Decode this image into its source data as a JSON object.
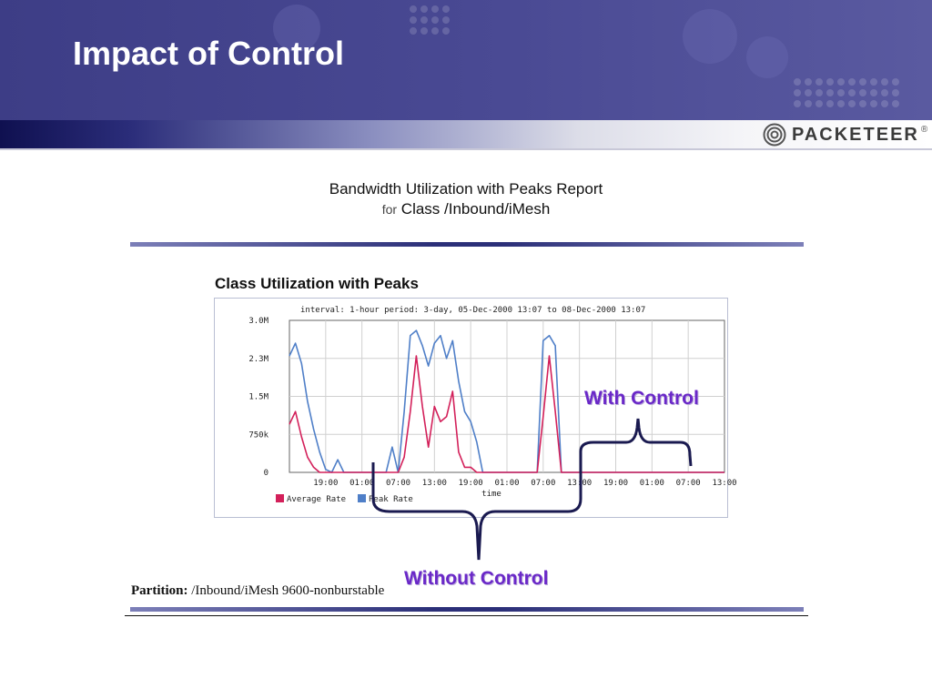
{
  "slide": {
    "title": "Impact of Control",
    "logo_text": "PACKETEER",
    "logo_mark": "®"
  },
  "report": {
    "title": "Bandwidth Utilization with Peaks Report",
    "subtitle_prefix": "for",
    "subtitle": "Class /Inbound/iMesh",
    "chart_heading": "Class Utilization with Peaks",
    "partition_label": "Partition:",
    "partition_value": "/Inbound/iMesh 9600-nonburstable"
  },
  "callouts": {
    "with_control": "With Control",
    "without_control": "Without Control"
  },
  "colors": {
    "average_rate": "#d3205a",
    "peak_rate": "#4f7fc8",
    "callout": "#6a28c8"
  },
  "chart_data": {
    "type": "line",
    "title": "interval: 1-hour  period: 3-day, 05-Dec-2000 13:07 to 08-Dec-2000 13:07",
    "xlabel": "time",
    "ylabel": "",
    "yticks": [
      "0",
      "750k",
      "1.5M",
      "2.3M",
      "3.0M"
    ],
    "ylim": [
      0,
      3000000
    ],
    "xticks": [
      "19:00",
      "01:00",
      "07:00",
      "13:00",
      "19:00",
      "01:00",
      "07:00",
      "13:00",
      "19:00",
      "01:00",
      "07:00",
      "13:00"
    ],
    "xlim": [
      0,
      72
    ],
    "legend": [
      "Average Rate",
      "Peak Rate"
    ],
    "legend_position": "bottom-left",
    "grid": true,
    "series": [
      {
        "name": "Peak Rate",
        "color": "#4f7fc8",
        "x": [
          0,
          1,
          2,
          3,
          4,
          5,
          6,
          7,
          8,
          9,
          10,
          11,
          12,
          13,
          14,
          15,
          16,
          17,
          18,
          19,
          20,
          21,
          22,
          23,
          24,
          25,
          26,
          27,
          28,
          29,
          30,
          31,
          32,
          33,
          34,
          35,
          36,
          37,
          38,
          39,
          40,
          41,
          42,
          43,
          44,
          45,
          46,
          47,
          48,
          49,
          50,
          51,
          52,
          53,
          54,
          55,
          56,
          57,
          58,
          59,
          60,
          61,
          62,
          63,
          64,
          65,
          66,
          67,
          68,
          69,
          70,
          71,
          72
        ],
        "y": [
          2300000,
          2550000,
          2150000,
          1400000,
          850000,
          400000,
          60000,
          0,
          250000,
          0,
          0,
          0,
          0,
          0,
          0,
          0,
          0,
          500000,
          0,
          1200000,
          2700000,
          2800000,
          2500000,
          2100000,
          2550000,
          2700000,
          2250000,
          2600000,
          1800000,
          1200000,
          1000000,
          600000,
          0,
          0,
          0,
          0,
          0,
          0,
          0,
          0,
          0,
          0,
          2600000,
          2700000,
          2500000,
          0,
          0,
          0,
          0,
          0,
          0,
          0,
          0,
          0,
          0,
          0,
          0,
          0,
          0,
          0,
          0,
          0,
          0,
          0,
          0,
          0,
          0,
          0,
          0,
          0,
          0,
          0,
          0
        ]
      },
      {
        "name": "Average Rate",
        "color": "#d3205a",
        "x": [
          0,
          1,
          2,
          3,
          4,
          5,
          6,
          7,
          8,
          9,
          10,
          11,
          12,
          13,
          14,
          15,
          16,
          17,
          18,
          19,
          20,
          21,
          22,
          23,
          24,
          25,
          26,
          27,
          28,
          29,
          30,
          31,
          32,
          33,
          34,
          35,
          36,
          37,
          38,
          39,
          40,
          41,
          42,
          43,
          44,
          45,
          46,
          47,
          48,
          49,
          50,
          51,
          52,
          53,
          54,
          55,
          56,
          57,
          58,
          59,
          60,
          61,
          62,
          63,
          64,
          65,
          66,
          67,
          68,
          69,
          70,
          71,
          72
        ],
        "y": [
          950000,
          1200000,
          700000,
          300000,
          100000,
          0,
          0,
          0,
          0,
          0,
          0,
          0,
          0,
          0,
          0,
          0,
          0,
          0,
          0,
          300000,
          1200000,
          2300000,
          1300000,
          500000,
          1300000,
          1000000,
          1100000,
          1600000,
          400000,
          100000,
          100000,
          0,
          0,
          0,
          0,
          0,
          0,
          0,
          0,
          0,
          0,
          0,
          1100000,
          2300000,
          1200000,
          0,
          0,
          0,
          0,
          0,
          0,
          0,
          0,
          0,
          0,
          0,
          0,
          0,
          0,
          0,
          0,
          0,
          0,
          0,
          0,
          0,
          0,
          0,
          0,
          0,
          0,
          0,
          0
        ]
      }
    ]
  }
}
